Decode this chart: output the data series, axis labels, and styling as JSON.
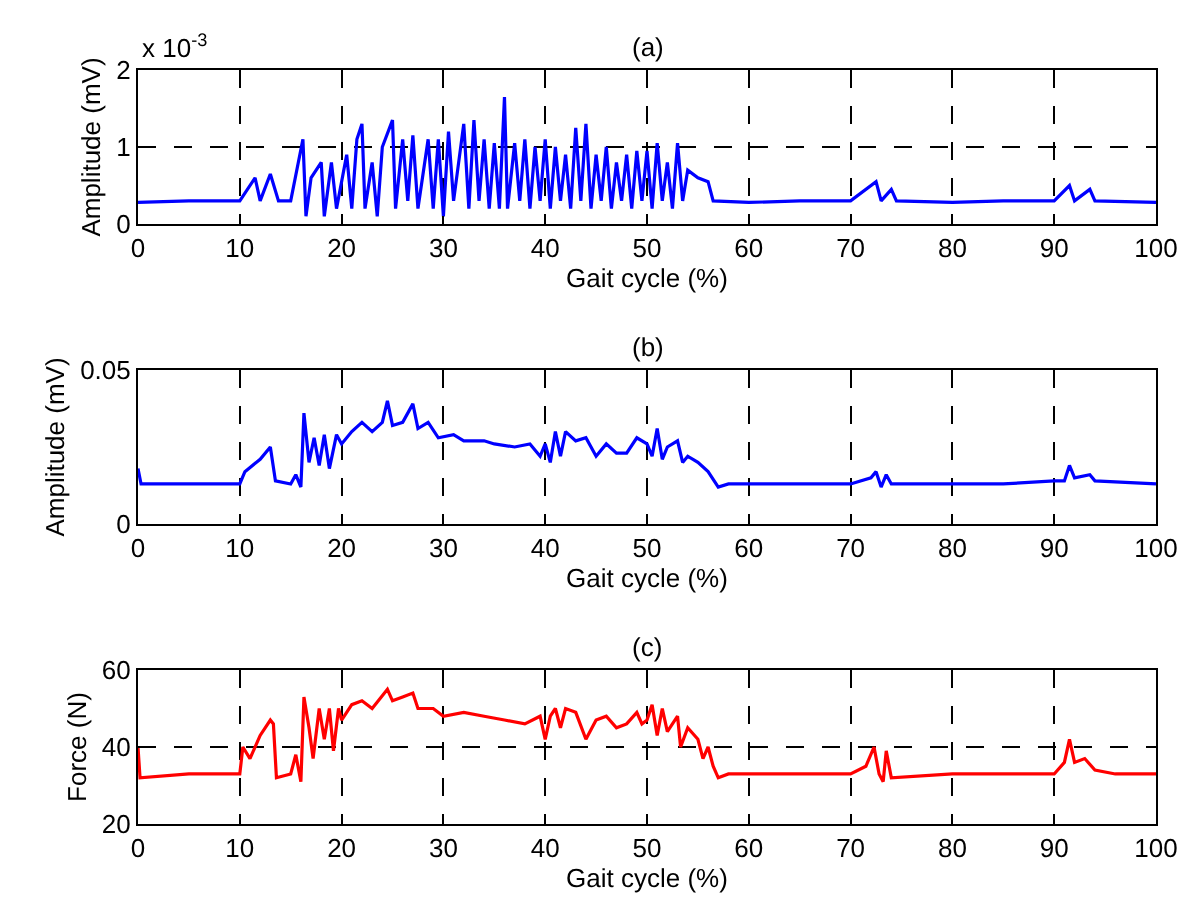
{
  "chart_data": [
    {
      "type": "line",
      "title": "(a)",
      "xlabel": "Gait cycle (%)",
      "ylabel": "Amplitude (mV)",
      "annotations": [
        "x 10$^{-3}$"
      ],
      "xlim": [
        0,
        100
      ],
      "ylim": [
        0,
        2
      ],
      "xticks": [
        0,
        10,
        20,
        30,
        40,
        50,
        60,
        70,
        80,
        90,
        100
      ],
      "yticks": [
        0,
        1,
        2
      ],
      "grid": true,
      "line_style": "solid",
      "series": [
        {
          "color": "#0000ff",
          "x": [
            0,
            5,
            10,
            11.5,
            12,
            13,
            13.8,
            15,
            16.2,
            16.5,
            17,
            18,
            18.3,
            19,
            19.5,
            20.5,
            21,
            21.5,
            22,
            22.3,
            23,
            23.5,
            24,
            25,
            25.3,
            26,
            26.5,
            27,
            27.5,
            28.5,
            29,
            29.5,
            30,
            30.5,
            31,
            32,
            32.5,
            33,
            33.5,
            34,
            34.5,
            35,
            35.5,
            36,
            36.3,
            37,
            37.5,
            38,
            38.5,
            39,
            39.5,
            40,
            40.5,
            41,
            41.5,
            42,
            42.5,
            43,
            43.5,
            44,
            44.5,
            45,
            45.5,
            46,
            46.5,
            47,
            47.5,
            48,
            48.5,
            49,
            49.5,
            50,
            50.5,
            51,
            51.5,
            52,
            52.5,
            53,
            53.5,
            54,
            55,
            56,
            56.5,
            60,
            65,
            70,
            72.5,
            73,
            74,
            74.5,
            80,
            85,
            90,
            91.5,
            92,
            93.5,
            94,
            100
          ],
          "values": [
            0.28,
            0.3,
            0.3,
            0.6,
            0.3,
            0.65,
            0.3,
            0.3,
            1.1,
            0.1,
            0.6,
            0.8,
            0.1,
            0.8,
            0.2,
            0.9,
            0.2,
            1.1,
            1.3,
            0.2,
            0.8,
            0.1,
            1.0,
            1.35,
            0.2,
            1.1,
            0.3,
            1.15,
            0.2,
            1.1,
            0.2,
            1.1,
            0.1,
            1.2,
            0.3,
            1.3,
            0.2,
            1.35,
            0.3,
            1.1,
            0.2,
            1.05,
            0.2,
            1.65,
            0.2,
            1.05,
            0.3,
            1.1,
            0.2,
            1.0,
            0.3,
            1.1,
            0.2,
            1.0,
            0.3,
            0.9,
            0.2,
            1.25,
            0.3,
            1.3,
            0.2,
            0.9,
            0.3,
            1.0,
            0.2,
            0.8,
            0.3,
            0.9,
            0.2,
            0.95,
            0.3,
            0.95,
            0.2,
            1.05,
            0.3,
            0.8,
            0.2,
            1.05,
            0.3,
            0.7,
            0.6,
            0.55,
            0.3,
            0.28,
            0.3,
            0.3,
            0.55,
            0.3,
            0.45,
            0.3,
            0.28,
            0.3,
            0.3,
            0.5,
            0.3,
            0.45,
            0.3,
            0.28
          ]
        }
      ]
    },
    {
      "type": "line",
      "title": "(b)",
      "xlabel": "Gait cycle (%)",
      "ylabel": "Amplitude (mV)",
      "xlim": [
        0,
        100
      ],
      "ylim": [
        0,
        0.05
      ],
      "xticks": [
        0,
        10,
        20,
        30,
        40,
        50,
        60,
        70,
        80,
        90,
        100
      ],
      "yticks": [
        0,
        0.05
      ],
      "grid": true,
      "line_style": "solid",
      "series": [
        {
          "color": "#0000ff",
          "x": [
            0,
            0.3,
            5,
            10,
            10.5,
            12,
            13,
            13.5,
            15,
            15.5,
            16,
            16.3,
            16.8,
            17.3,
            17.8,
            18.3,
            18.8,
            19.5,
            20,
            21,
            22,
            23,
            24,
            24.5,
            25,
            26,
            27,
            27.5,
            28.5,
            29.5,
            31,
            32,
            34,
            35,
            37,
            38.5,
            39.5,
            40,
            40.5,
            41,
            41.5,
            42,
            43,
            44,
            45,
            46,
            47,
            48,
            49,
            50,
            50.5,
            51,
            51.5,
            52,
            53,
            53.5,
            54,
            55,
            56,
            57,
            58,
            65,
            70,
            72,
            72.5,
            73,
            73.5,
            74,
            80,
            85,
            90,
            91,
            91.5,
            92,
            93.5,
            94,
            100
          ],
          "values": [
            0.018,
            0.013,
            0.013,
            0.013,
            0.017,
            0.021,
            0.025,
            0.014,
            0.013,
            0.016,
            0.012,
            0.036,
            0.02,
            0.028,
            0.019,
            0.029,
            0.018,
            0.029,
            0.026,
            0.03,
            0.033,
            0.03,
            0.033,
            0.04,
            0.032,
            0.033,
            0.039,
            0.031,
            0.033,
            0.028,
            0.029,
            0.027,
            0.027,
            0.026,
            0.025,
            0.026,
            0.022,
            0.026,
            0.02,
            0.03,
            0.022,
            0.03,
            0.027,
            0.028,
            0.022,
            0.026,
            0.023,
            0.023,
            0.028,
            0.026,
            0.022,
            0.031,
            0.021,
            0.025,
            0.027,
            0.02,
            0.022,
            0.02,
            0.017,
            0.012,
            0.013,
            0.013,
            0.013,
            0.015,
            0.017,
            0.012,
            0.016,
            0.013,
            0.013,
            0.013,
            0.014,
            0.014,
            0.019,
            0.015,
            0.016,
            0.014,
            0.013
          ]
        }
      ]
    },
    {
      "type": "line",
      "title": "(c)",
      "xlabel": "Gait cycle (%)",
      "ylabel": "Force (N)",
      "xlim": [
        0,
        100
      ],
      "ylim": [
        20,
        60
      ],
      "xticks": [
        0,
        10,
        20,
        30,
        40,
        50,
        60,
        70,
        80,
        90,
        100
      ],
      "yticks": [
        20,
        40,
        60
      ],
      "grid": true,
      "line_style": "solid",
      "series": [
        {
          "color": "#ff0000",
          "x": [
            0,
            0.2,
            5,
            10,
            10.3,
            11,
            12,
            13,
            13.3,
            13.6,
            15,
            15.5,
            16,
            16.3,
            16.8,
            17.2,
            17.8,
            18.3,
            18.8,
            19.2,
            19.7,
            20,
            21,
            22,
            23,
            24.5,
            25,
            26,
            27,
            27.5,
            29,
            30,
            32,
            34,
            36,
            38,
            39.5,
            40,
            40.5,
            41,
            41.5,
            42,
            43,
            44,
            45,
            46,
            47,
            48,
            49,
            49.5,
            50,
            50.5,
            51,
            51.5,
            52,
            53,
            53.3,
            54,
            55,
            55.5,
            56,
            56.5,
            57,
            58,
            65,
            70,
            71.5,
            72.3,
            72.8,
            73.2,
            73.5,
            74,
            80,
            85,
            90,
            91,
            91.5,
            92,
            93,
            94,
            96,
            100
          ],
          "values": [
            40,
            32,
            33,
            33,
            40,
            37,
            43,
            47,
            46,
            32,
            33,
            38,
            31,
            53,
            45,
            37,
            50,
            42,
            50,
            39,
            50,
            47,
            51,
            52,
            50,
            55,
            52,
            53,
            54,
            50,
            50,
            48,
            49,
            48,
            47,
            46,
            48,
            42,
            48,
            50,
            45,
            50,
            49,
            42,
            47,
            48,
            45,
            46,
            49,
            46,
            47,
            51,
            43,
            50,
            44,
            48,
            40,
            45,
            42,
            37,
            40,
            35,
            32,
            33,
            33,
            33,
            35,
            40,
            33,
            31,
            39,
            32,
            33,
            33,
            33,
            36,
            42,
            36,
            37,
            34,
            33,
            33
          ]
        }
      ]
    }
  ]
}
